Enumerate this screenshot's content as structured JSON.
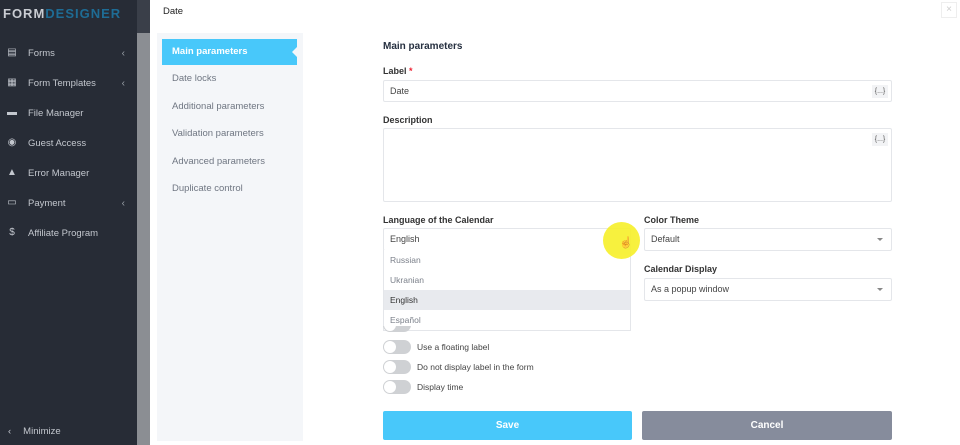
{
  "logo": {
    "part1": "FORM",
    "part2": "DESIGNER"
  },
  "sidebar": {
    "items": [
      {
        "label": "Forms",
        "icon": "forms-icon",
        "glyph": "▤",
        "chevron": true
      },
      {
        "label": "Form Templates",
        "icon": "template-icon",
        "glyph": "▦",
        "chevron": true
      },
      {
        "label": "File Manager",
        "icon": "folder-icon",
        "glyph": "▬",
        "chevron": false
      },
      {
        "label": "Guest Access",
        "icon": "user-circle-icon",
        "glyph": "◉",
        "chevron": false
      },
      {
        "label": "Error Manager",
        "icon": "warning-icon",
        "glyph": "▲",
        "chevron": false
      },
      {
        "label": "Payment",
        "icon": "credit-card-icon",
        "glyph": "▭",
        "chevron": true
      },
      {
        "label": "Affiliate Program",
        "icon": "dollar-circle-icon",
        "glyph": "$",
        "chevron": false
      }
    ],
    "minimize": "Minimize"
  },
  "dialog": {
    "title": "Date",
    "close": "×"
  },
  "tabs": [
    "Main parameters",
    "Date locks",
    "Additional parameters",
    "Validation parameters",
    "Advanced parameters",
    "Duplicate control"
  ],
  "form": {
    "heading": "Main parameters",
    "label_label": "Label",
    "required": "*",
    "label_value": "Date",
    "code_btn": "{...}",
    "description_label": "Description",
    "description_value": "",
    "language_label": "Language of the Calendar",
    "language_value": "English",
    "language_options": [
      "Russian",
      "Ukranian",
      "English",
      "Español"
    ],
    "theme_label": "Color Theme",
    "theme_value": "Default",
    "display_label": "Calendar Display",
    "display_value": "As a popup window",
    "toggles": [
      {
        "label": "Use a floating label",
        "on": false
      },
      {
        "label": "Do not display label in the form",
        "on": false
      },
      {
        "label": "Display time",
        "on": false
      }
    ],
    "save": "Save",
    "cancel": "Cancel"
  },
  "colors": {
    "accent": "#48c8fa",
    "cancel": "#868c9c",
    "sidebar": "#272c36"
  }
}
